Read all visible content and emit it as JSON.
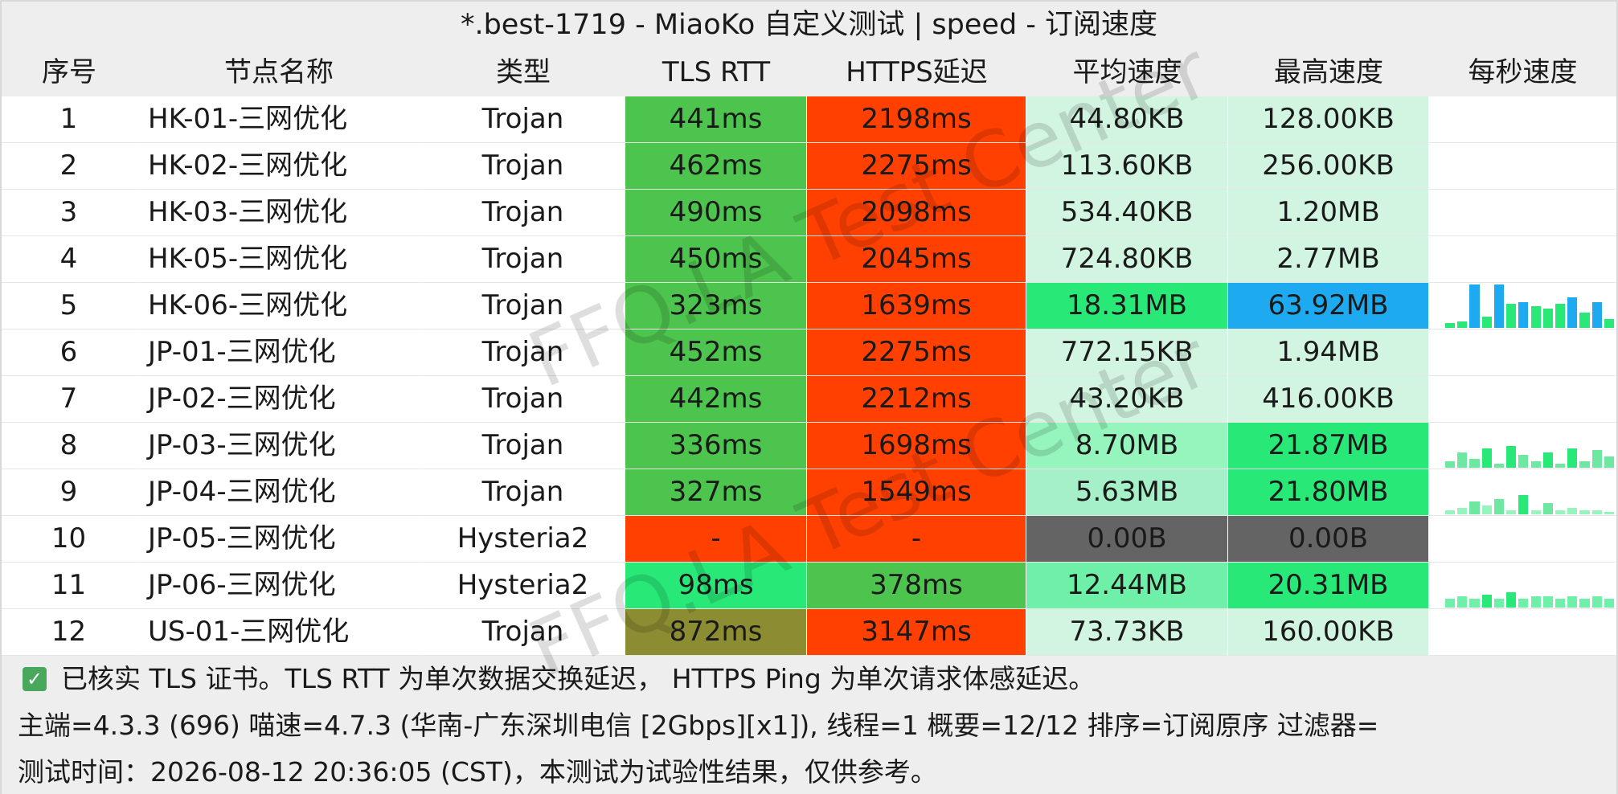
{
  "title": "*.best-1719 - MiaoKo 自定义测试 | speed - 订阅速度",
  "columns": [
    "序号",
    "节点名称",
    "类型",
    "TLS RTT",
    "HTTPS延迟",
    "平均速度",
    "最高速度",
    "每秒速度"
  ],
  "rows": [
    {
      "idx": "1",
      "name": "HK-01-三网优化",
      "type": "Trojan",
      "tls": "441ms",
      "https": "2198ms",
      "avg": "44.80KB",
      "max": "128.00KB",
      "colors": {
        "tls": "#4dc44d",
        "https": "#ff4000",
        "avg": "#d2f5e1",
        "max": "#d2f5e1"
      },
      "spark": []
    },
    {
      "idx": "2",
      "name": "HK-02-三网优化",
      "type": "Trojan",
      "tls": "462ms",
      "https": "2275ms",
      "avg": "113.60KB",
      "max": "256.00KB",
      "colors": {
        "tls": "#4dc44d",
        "https": "#ff4000",
        "avg": "#d2f5e1",
        "max": "#d2f5e1"
      },
      "spark": []
    },
    {
      "idx": "3",
      "name": "HK-03-三网优化",
      "type": "Trojan",
      "tls": "490ms",
      "https": "2098ms",
      "avg": "534.40KB",
      "max": "1.20MB",
      "colors": {
        "tls": "#4dc44d",
        "https": "#ff4000",
        "avg": "#d2f5e1",
        "max": "#d2f5e1"
      },
      "spark": []
    },
    {
      "idx": "4",
      "name": "HK-05-三网优化",
      "type": "Trojan",
      "tls": "450ms",
      "https": "2045ms",
      "avg": "724.80KB",
      "max": "2.77MB",
      "colors": {
        "tls": "#4dc44d",
        "https": "#ff4000",
        "avg": "#d2f5e1",
        "max": "#d2f5e1"
      },
      "spark": []
    },
    {
      "idx": "5",
      "name": "HK-06-三网优化",
      "type": "Trojan",
      "tls": "323ms",
      "https": "1639ms",
      "avg": "18.31MB",
      "max": "63.92MB",
      "colors": {
        "tls": "#4dc44d",
        "https": "#ff4000",
        "avg": "#28e878",
        "max": "#1eaaf0"
      },
      "spark": [
        {
          "v": 0.12,
          "c": "#28e878"
        },
        {
          "v": 0.15,
          "c": "#28e878"
        },
        {
          "v": 1.0,
          "c": "#1eaaf0"
        },
        {
          "v": 0.25,
          "c": "#28e878"
        },
        {
          "v": 1.0,
          "c": "#1eaaf0"
        },
        {
          "v": 0.55,
          "c": "#28e878"
        },
        {
          "v": 0.6,
          "c": "#1eaaf0"
        },
        {
          "v": 0.5,
          "c": "#28e878"
        },
        {
          "v": 0.45,
          "c": "#28e878"
        },
        {
          "v": 0.55,
          "c": "#28e878"
        },
        {
          "v": 0.7,
          "c": "#1eaaf0"
        },
        {
          "v": 0.35,
          "c": "#28e878"
        },
        {
          "v": 0.6,
          "c": "#1eaaf0"
        },
        {
          "v": 0.2,
          "c": "#28e878"
        }
      ]
    },
    {
      "idx": "6",
      "name": "JP-01-三网优化",
      "type": "Trojan",
      "tls": "452ms",
      "https": "2275ms",
      "avg": "772.15KB",
      "max": "1.94MB",
      "colors": {
        "tls": "#4dc44d",
        "https": "#ff4000",
        "avg": "#d2f5e1",
        "max": "#d2f5e1"
      },
      "spark": []
    },
    {
      "idx": "7",
      "name": "JP-02-三网优化",
      "type": "Trojan",
      "tls": "442ms",
      "https": "2212ms",
      "avg": "43.20KB",
      "max": "416.00KB",
      "colors": {
        "tls": "#4dc44d",
        "https": "#ff4000",
        "avg": "#d2f5e1",
        "max": "#d2f5e1"
      },
      "spark": []
    },
    {
      "idx": "8",
      "name": "JP-03-三网优化",
      "type": "Trojan",
      "tls": "336ms",
      "https": "1698ms",
      "avg": "8.70MB",
      "max": "21.87MB",
      "colors": {
        "tls": "#4dc44d",
        "https": "#ff4000",
        "avg": "#95f5bc",
        "max": "#28e878"
      },
      "spark": [
        {
          "v": 0.15,
          "c": "#6ee8a0"
        },
        {
          "v": 0.35,
          "c": "#6ee8a0"
        },
        {
          "v": 0.2,
          "c": "#6ee8a0"
        },
        {
          "v": 0.45,
          "c": "#28e878"
        },
        {
          "v": 0.1,
          "c": "#6ee8a0"
        },
        {
          "v": 0.5,
          "c": "#28e878"
        },
        {
          "v": 0.3,
          "c": "#6ee8a0"
        },
        {
          "v": 0.15,
          "c": "#6ee8a0"
        },
        {
          "v": 0.35,
          "c": "#28e878"
        },
        {
          "v": 0.1,
          "c": "#6ee8a0"
        },
        {
          "v": 0.45,
          "c": "#28e878"
        },
        {
          "v": 0.15,
          "c": "#6ee8a0"
        },
        {
          "v": 0.4,
          "c": "#6ee8a0"
        },
        {
          "v": 0.25,
          "c": "#6ee8a0"
        }
      ]
    },
    {
      "idx": "9",
      "name": "JP-04-三网优化",
      "type": "Trojan",
      "tls": "327ms",
      "https": "1549ms",
      "avg": "5.63MB",
      "max": "21.80MB",
      "colors": {
        "tls": "#4dc44d",
        "https": "#ff4000",
        "avg": "#a5f0c8",
        "max": "#28e878"
      },
      "spark": [
        {
          "v": 0.1,
          "c": "#95f5bc"
        },
        {
          "v": 0.15,
          "c": "#95f5bc"
        },
        {
          "v": 0.3,
          "c": "#6ee8a0"
        },
        {
          "v": 0.2,
          "c": "#95f5bc"
        },
        {
          "v": 0.35,
          "c": "#6ee8a0"
        },
        {
          "v": 0.1,
          "c": "#95f5bc"
        },
        {
          "v": 0.45,
          "c": "#28e878"
        },
        {
          "v": 0.1,
          "c": "#95f5bc"
        },
        {
          "v": 0.25,
          "c": "#6ee8a0"
        },
        {
          "v": 0.1,
          "c": "#95f5bc"
        },
        {
          "v": 0.15,
          "c": "#95f5bc"
        },
        {
          "v": 0.1,
          "c": "#95f5bc"
        },
        {
          "v": 0.1,
          "c": "#95f5bc"
        },
        {
          "v": 0.05,
          "c": "#95f5bc"
        }
      ]
    },
    {
      "idx": "10",
      "name": "JP-05-三网优化",
      "type": "Hysteria2",
      "tls": "-",
      "https": "-",
      "avg": "0.00B",
      "max": "0.00B",
      "colors": {
        "tls": "#ff4000",
        "https": "#ff4000",
        "avg": "#646464",
        "max": "#646464"
      },
      "spark": []
    },
    {
      "idx": "11",
      "name": "JP-06-三网优化",
      "type": "Hysteria2",
      "tls": "98ms",
      "https": "378ms",
      "avg": "12.44MB",
      "max": "20.31MB",
      "colors": {
        "tls": "#28e878",
        "https": "#4dc44d",
        "avg": "#6ef0a8",
        "max": "#28e878"
      },
      "spark": [
        {
          "v": 0.2,
          "c": "#6ef0a8"
        },
        {
          "v": 0.25,
          "c": "#6ef0a8"
        },
        {
          "v": 0.2,
          "c": "#6ef0a8"
        },
        {
          "v": 0.3,
          "c": "#28e878"
        },
        {
          "v": 0.2,
          "c": "#6ef0a8"
        },
        {
          "v": 0.35,
          "c": "#28e878"
        },
        {
          "v": 0.2,
          "c": "#6ef0a8"
        },
        {
          "v": 0.25,
          "c": "#6ef0a8"
        },
        {
          "v": 0.25,
          "c": "#6ef0a8"
        },
        {
          "v": 0.2,
          "c": "#6ef0a8"
        },
        {
          "v": 0.25,
          "c": "#6ef0a8"
        },
        {
          "v": 0.2,
          "c": "#6ef0a8"
        },
        {
          "v": 0.25,
          "c": "#6ef0a8"
        },
        {
          "v": 0.2,
          "c": "#6ef0a8"
        }
      ]
    },
    {
      "idx": "12",
      "name": "US-01-三网优化",
      "type": "Trojan",
      "tls": "872ms",
      "https": "3147ms",
      "avg": "73.73KB",
      "max": "160.00KB",
      "colors": {
        "tls": "#8c8c32",
        "https": "#ff4000",
        "avg": "#d2f5e1",
        "max": "#d2f5e1"
      },
      "spark": []
    }
  ],
  "footer": {
    "note": "已核实 TLS 证书。TLS RTT 为单次数据交换延迟， HTTPS Ping 为单次请求体感延迟。",
    "meta": "主端=4.3.3 (696) 喵速=4.7.3 (华南-广东深圳电信 [2Gbps][x1]), 线程=1 概要=12/12 排序=订阅原序 过滤器=",
    "time": "测试时间：2026-08-12 20:36:05 (CST)，本测试为试验性结果，仅供参考。"
  },
  "watermark": "FFQ.LA Test Center"
}
